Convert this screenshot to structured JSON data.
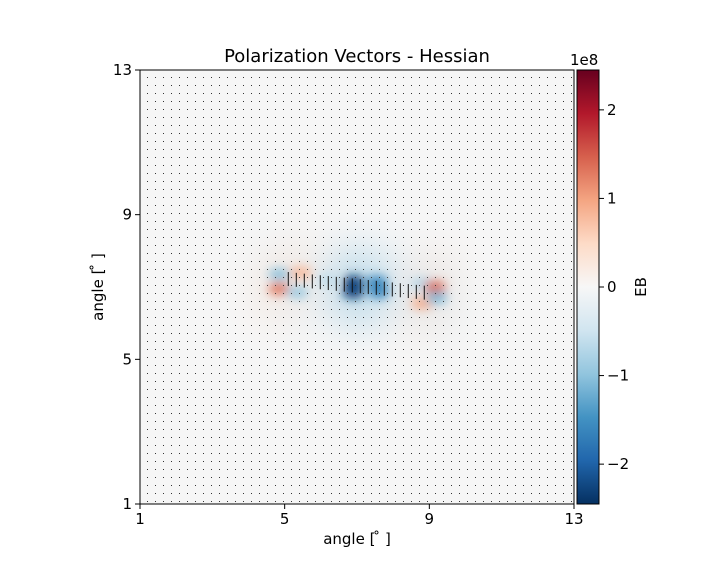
{
  "chart_data": {
    "type": "heatmap",
    "title": "Polarization Vectors - Hessian",
    "xlabel": "angle [$^\\circ$]",
    "ylabel": "angle [$^\\circ$]",
    "xlabel_display": "angle [ ̊ ]",
    "ylabel_display": "angle [ ̊ ]",
    "xlim": [
      1,
      13
    ],
    "ylim": [
      1,
      13
    ],
    "xticks": [
      "1",
      "5",
      "9",
      "13"
    ],
    "yticks": [
      "1",
      "5",
      "9",
      "13"
    ],
    "colorbar": {
      "label": "EB",
      "offset_text": "1e8",
      "range": [
        -2.45,
        2.45
      ],
      "ticks": [
        "2",
        "1",
        "0",
        "−1",
        "−2"
      ],
      "tick_values": [
        2,
        1,
        0,
        -1,
        -2
      ],
      "colormap": "RdBu_r"
    },
    "features": [
      {
        "x": 4.85,
        "y": 7.35,
        "value": -1.0
      },
      {
        "x": 4.85,
        "y": 6.95,
        "value": 1.3
      },
      {
        "x": 5.35,
        "y": 6.85,
        "value": -0.9
      },
      {
        "x": 5.45,
        "y": 7.4,
        "value": 0.8
      },
      {
        "x": 6.2,
        "y": 7.2,
        "value": -0.6
      },
      {
        "x": 6.9,
        "y": 7.15,
        "value": -2.3
      },
      {
        "x": 6.9,
        "y": 6.85,
        "value": -2.3
      },
      {
        "x": 7.55,
        "y": 7.15,
        "value": -1.6
      },
      {
        "x": 7.6,
        "y": 6.85,
        "value": -1.6
      },
      {
        "x": 8.8,
        "y": 6.55,
        "value": 0.9
      },
      {
        "x": 8.8,
        "y": 7.1,
        "value": -0.7
      },
      {
        "x": 9.15,
        "y": 7.0,
        "value": 1.4
      },
      {
        "x": 9.2,
        "y": 6.7,
        "value": -1.1
      }
    ],
    "vectors": {
      "x_range": [
        5.1,
        9.0
      ],
      "y_upper": 7.22,
      "y_lower": 6.83,
      "angle": "vertical"
    },
    "grid": false
  }
}
